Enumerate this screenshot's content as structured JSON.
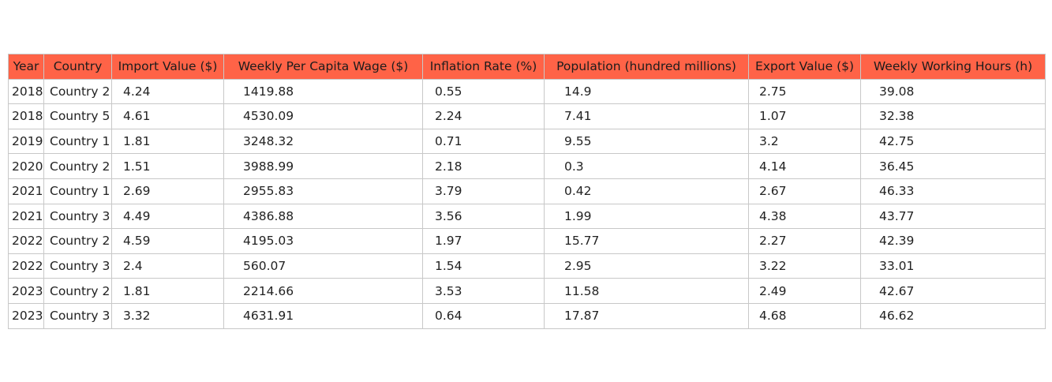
{
  "chart_data": {
    "type": "table",
    "columns": [
      "Year",
      "Country",
      "Import Value ($)",
      "Weekly Per Capita Wage ($)",
      "Inflation Rate (%)",
      "Population (hundred millions)",
      "Export Value ($)",
      "Weekly Working Hours (h)"
    ],
    "rows": [
      [
        "2018",
        "Country 2",
        "4.24",
        "1419.88",
        "0.55",
        "14.9",
        "2.75",
        "39.08"
      ],
      [
        "2018",
        "Country 5",
        "4.61",
        "4530.09",
        "2.24",
        "7.41",
        "1.07",
        "32.38"
      ],
      [
        "2019",
        "Country 1",
        "1.81",
        "3248.32",
        "0.71",
        "9.55",
        "3.2",
        "42.75"
      ],
      [
        "2020",
        "Country 2",
        "1.51",
        "3988.99",
        "2.18",
        "0.3",
        "4.14",
        "36.45"
      ],
      [
        "2021",
        "Country 1",
        "2.69",
        "2955.83",
        "3.79",
        "0.42",
        "2.67",
        "46.33"
      ],
      [
        "2021",
        "Country 3",
        "4.49",
        "4386.88",
        "3.56",
        "1.99",
        "4.38",
        "43.77"
      ],
      [
        "2022",
        "Country 2",
        "4.59",
        "4195.03",
        "1.97",
        "15.77",
        "2.27",
        "42.39"
      ],
      [
        "2022",
        "Country 3",
        "2.4",
        "560.07",
        "1.54",
        "2.95",
        "3.22",
        "33.01"
      ],
      [
        "2023",
        "Country 2",
        "1.81",
        "2214.66",
        "3.53",
        "11.58",
        "2.49",
        "42.67"
      ],
      [
        "2023",
        "Country 3",
        "3.32",
        "4631.91",
        "0.64",
        "17.87",
        "4.68",
        "46.62"
      ]
    ],
    "header_color": "#ff6347",
    "border_color": "#c8c8c8"
  }
}
